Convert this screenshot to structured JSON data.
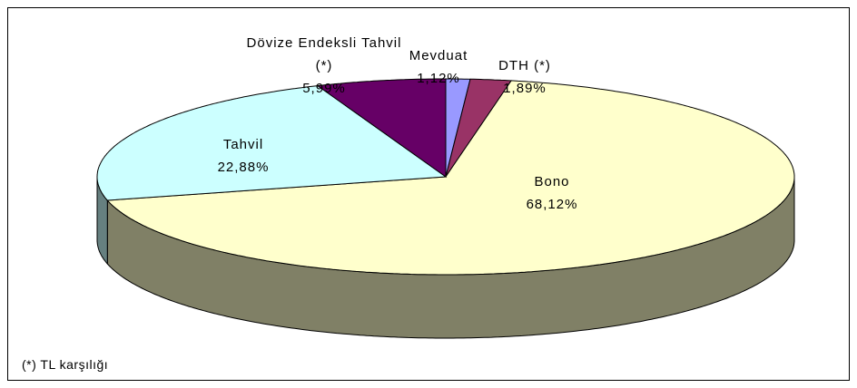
{
  "chart_data": {
    "type": "pie",
    "categories": [
      "Mevduat",
      "DTH (*)",
      "Bono",
      "Tahvil",
      "Dövize Endeksli Tahvil (*)"
    ],
    "values": [
      1.12,
      1.89,
      68.12,
      22.88,
      5.99
    ],
    "value_labels": [
      "1,12%",
      "1,89%",
      "68,12%",
      "22,88%",
      "5,99%"
    ],
    "colors": [
      "#9999ff",
      "#993366",
      "#ffffcc",
      "#ccffff",
      "#660066"
    ],
    "footnote": "(*) TL karşılığı"
  }
}
